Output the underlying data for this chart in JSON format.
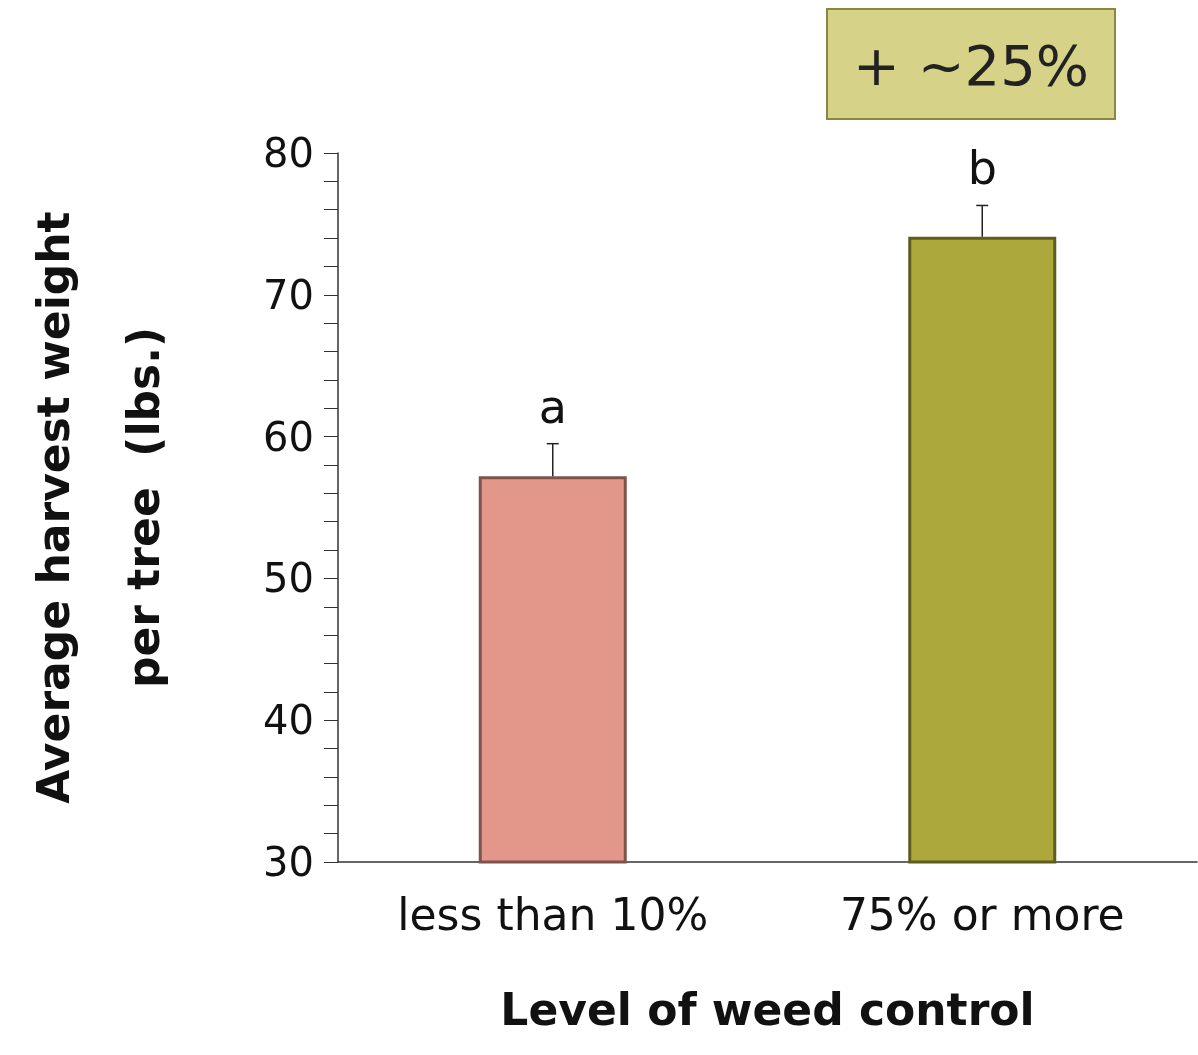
{
  "chart_data": {
    "type": "bar",
    "categories": [
      "less than 10%",
      "75% or more"
    ],
    "values": [
      57.2,
      74.1
    ],
    "colors": [
      "#e3978a",
      "#aca83c"
    ],
    "errors": [
      [
        57.2,
        59.5
      ],
      [
        74.1,
        76.3
      ]
    ],
    "xlabel": "Level of weed control",
    "ylabel": "Average harvest weight per tree  (lbs.)",
    "ylim": [
      30,
      80
    ],
    "yticks": [
      30,
      {
        "value": 32,
        "label": null
      },
      {
        "value": 34,
        "label": null
      },
      {
        "value": 36,
        "label": null
      },
      {
        "value": 38,
        "label": null
      },
      40,
      {
        "value": 42,
        "label": null
      },
      {
        "value": 44,
        "label": null
      },
      {
        "value": 46,
        "label": null
      },
      {
        "value": 48,
        "label": null
      },
      50,
      {
        "value": 52,
        "label": null
      },
      {
        "value": 54,
        "label": null
      },
      {
        "value": 56,
        "label": null
      },
      {
        "value": 58,
        "label": null
      },
      60,
      {
        "value": 62,
        "label": null
      },
      {
        "value": 64,
        "label": null
      },
      {
        "value": 66,
        "label": null
      },
      {
        "value": 68,
        "label": null
      },
      70,
      {
        "value": 72,
        "label": null
      },
      {
        "value": 74,
        "label": null
      },
      {
        "value": 76,
        "label": null
      },
      {
        "value": 78,
        "label": null
      },
      80
    ],
    "annotations": [
      {
        "text": "a",
        "x": "less than 10%",
        "y": 59.5
      },
      {
        "text": "b",
        "x": "75% or more",
        "y": 76.3
      },
      "+ ~25%"
    ],
    "grid": false
  }
}
